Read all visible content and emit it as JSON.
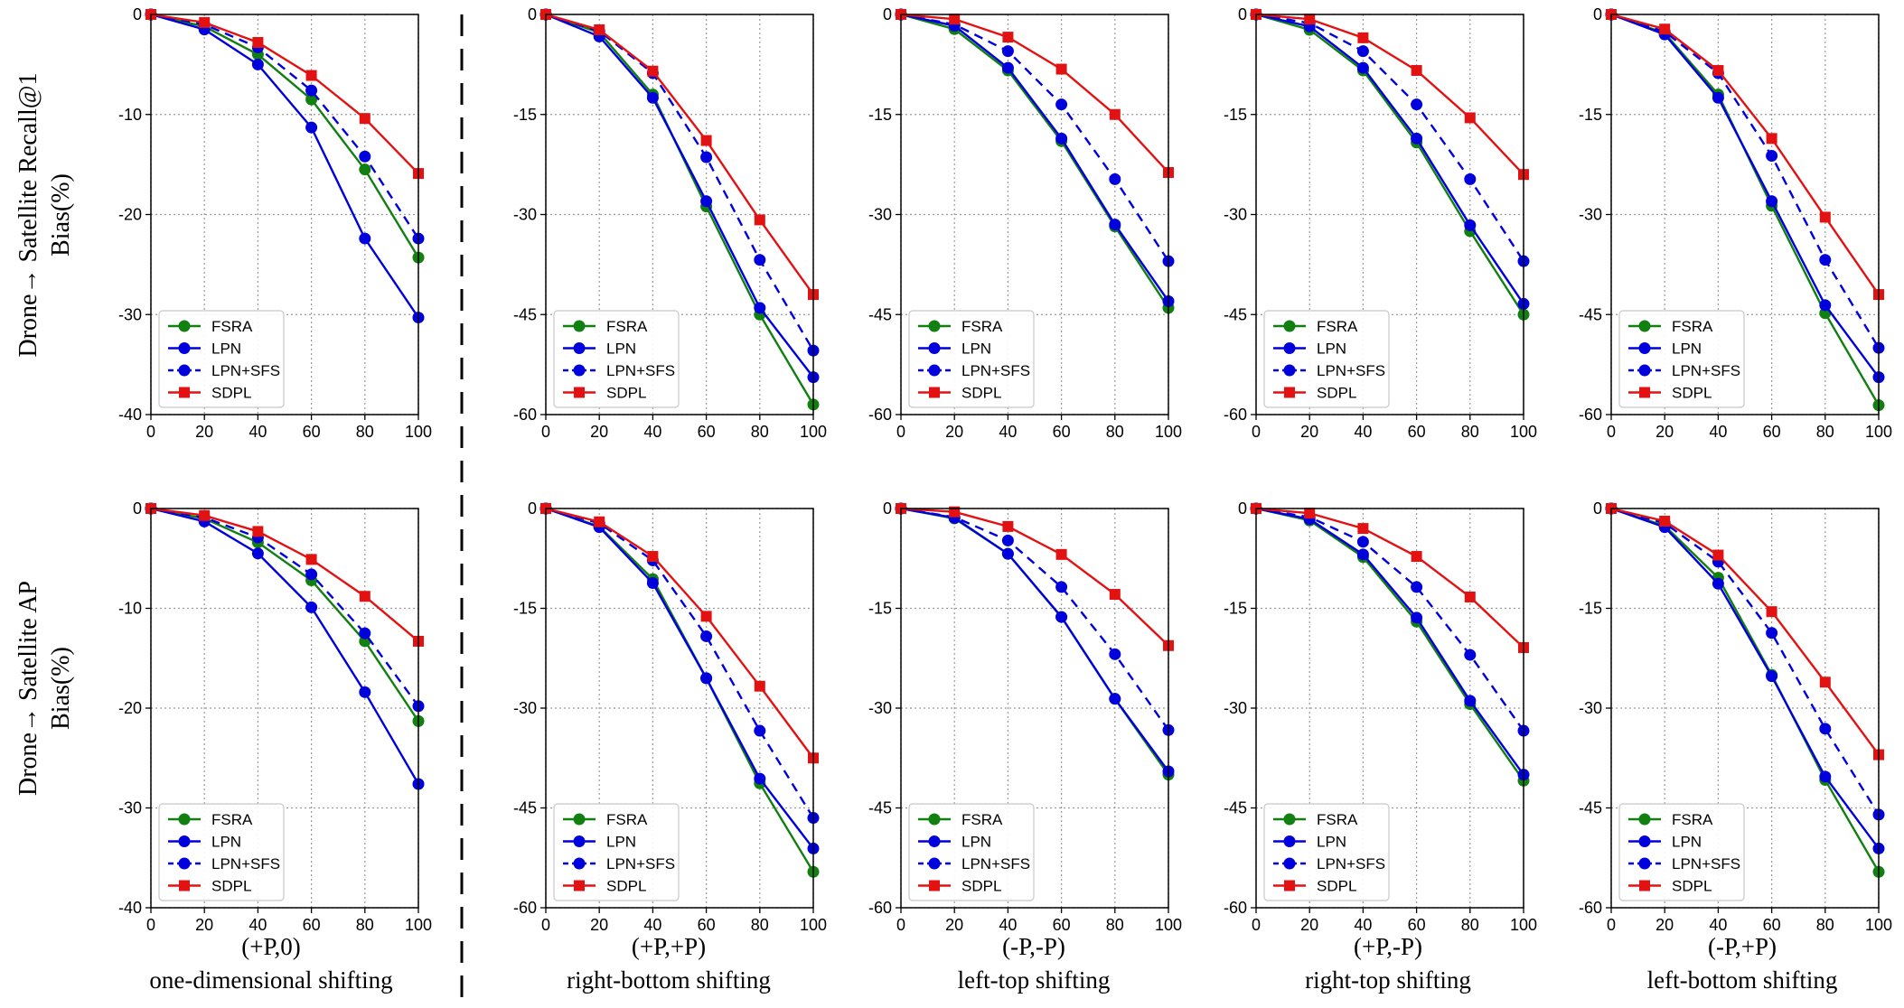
{
  "colors": {
    "FSRA": "#118011",
    "LPN": "#0000dd",
    "LPN+SFS": "#0000dd",
    "SDPL": "#e31212"
  },
  "legend": [
    "FSRA",
    "LPN",
    "LPN+SFS",
    "SDPL"
  ],
  "row_labels": [
    {
      "line1": "Drone→ Satellite Recall@1",
      "line2": "Bias(%)"
    },
    {
      "line1": "Drone→ Satellite AP",
      "line2": "Bias(%)"
    }
  ],
  "column_labels": [
    {
      "shift": "(+P,0)",
      "name": "one-dimensional shifting"
    },
    {
      "shift": "(+P,+P)",
      "name": "right-bottom shifting"
    },
    {
      "shift": "(-P,-P)",
      "name": "left-top shifting"
    },
    {
      "shift": "(+P,-P)",
      "name": "right-top shifting"
    },
    {
      "shift": "(-P,+P)",
      "name": "left-bottom shifting"
    }
  ],
  "chart_data": [
    {
      "type": "line",
      "row": 0,
      "col": 0,
      "x": [
        0,
        20,
        40,
        60,
        80,
        100
      ],
      "xlim": [
        0,
        100
      ],
      "ylim": [
        -40,
        0
      ],
      "xticks": [
        "0",
        "20",
        "40",
        "60",
        "80",
        "100"
      ],
      "yticks": [
        "0",
        "-10",
        "-20",
        "-30",
        "-40"
      ],
      "series": [
        {
          "name": "FSRA",
          "values": [
            0,
            -1.2,
            -4.0,
            -8.5,
            -15.5,
            -24.3
          ]
        },
        {
          "name": "LPN",
          "values": [
            0,
            -1.5,
            -5.0,
            -11.3,
            -22.4,
            -30.3
          ]
        },
        {
          "name": "LPN+SFS",
          "values": [
            0,
            -1.0,
            -3.3,
            -7.6,
            -14.2,
            -22.4
          ]
        },
        {
          "name": "SDPL",
          "values": [
            0,
            -0.8,
            -2.8,
            -6.1,
            -10.4,
            -15.9
          ]
        }
      ]
    },
    {
      "type": "line",
      "row": 0,
      "col": 1,
      "x": [
        0,
        20,
        40,
        60,
        80,
        100
      ],
      "xlim": [
        0,
        100
      ],
      "ylim": [
        -60,
        0
      ],
      "xticks": [
        "0",
        "20",
        "40",
        "60",
        "80",
        "100"
      ],
      "yticks": [
        "0",
        "-15",
        "-30",
        "-45",
        "-60"
      ],
      "series": [
        {
          "name": "FSRA",
          "values": [
            0,
            -2.7,
            -12.0,
            -28.8,
            -45.0,
            -58.5
          ]
        },
        {
          "name": "LPN",
          "values": [
            0,
            -3.3,
            -12.5,
            -28.0,
            -44.0,
            -54.4
          ]
        },
        {
          "name": "LPN+SFS",
          "values": [
            0,
            -2.5,
            -8.8,
            -21.4,
            -36.8,
            -50.4
          ]
        },
        {
          "name": "SDPL",
          "values": [
            0,
            -2.3,
            -8.5,
            -18.9,
            -30.8,
            -42.0
          ]
        }
      ]
    },
    {
      "type": "line",
      "row": 0,
      "col": 2,
      "x": [
        0,
        20,
        40,
        60,
        80,
        100
      ],
      "xlim": [
        0,
        100
      ],
      "ylim": [
        -60,
        0
      ],
      "xticks": [
        "0",
        "20",
        "40",
        "60",
        "80",
        "100"
      ],
      "yticks": [
        "0",
        "-15",
        "-30",
        "-45",
        "-60"
      ],
      "series": [
        {
          "name": "FSRA",
          "values": [
            0,
            -2.2,
            -8.4,
            -19.0,
            -31.8,
            -44.0
          ]
        },
        {
          "name": "LPN",
          "values": [
            0,
            -1.7,
            -8.0,
            -18.6,
            -31.5,
            -43.0
          ]
        },
        {
          "name": "LPN+SFS",
          "values": [
            0,
            -1.5,
            -5.5,
            -13.5,
            -24.7,
            -37.0
          ]
        },
        {
          "name": "SDPL",
          "values": [
            0,
            -0.7,
            -3.4,
            -8.2,
            -15.0,
            -23.7
          ]
        }
      ]
    },
    {
      "type": "line",
      "row": 0,
      "col": 3,
      "x": [
        0,
        20,
        40,
        60,
        80,
        100
      ],
      "xlim": [
        0,
        100
      ],
      "ylim": [
        -60,
        0
      ],
      "xticks": [
        "0",
        "20",
        "40",
        "60",
        "80",
        "100"
      ],
      "yticks": [
        "0",
        "-15",
        "-30",
        "-45",
        "-60"
      ],
      "series": [
        {
          "name": "FSRA",
          "values": [
            0,
            -2.3,
            -8.4,
            -19.2,
            -32.5,
            -45.0
          ]
        },
        {
          "name": "LPN",
          "values": [
            0,
            -1.8,
            -8.0,
            -18.6,
            -31.6,
            -43.4
          ]
        },
        {
          "name": "LPN+SFS",
          "values": [
            0,
            -1.3,
            -5.5,
            -13.5,
            -24.7,
            -37.0
          ]
        },
        {
          "name": "SDPL",
          "values": [
            0,
            -0.7,
            -3.5,
            -8.4,
            -15.5,
            -24.0
          ]
        }
      ]
    },
    {
      "type": "line",
      "row": 0,
      "col": 4,
      "x": [
        0,
        20,
        40,
        60,
        80,
        100
      ],
      "xlim": [
        0,
        100
      ],
      "ylim": [
        -60,
        0
      ],
      "xticks": [
        "0",
        "20",
        "40",
        "60",
        "80",
        "100"
      ],
      "yticks": [
        "0",
        "-15",
        "-30",
        "-45",
        "-60"
      ],
      "series": [
        {
          "name": "FSRA",
          "values": [
            0,
            -2.8,
            -12.0,
            -28.7,
            -44.8,
            -58.6
          ]
        },
        {
          "name": "LPN",
          "values": [
            0,
            -3.0,
            -12.5,
            -28.0,
            -43.6,
            -54.4
          ]
        },
        {
          "name": "LPN+SFS",
          "values": [
            0,
            -2.6,
            -8.8,
            -21.2,
            -36.8,
            -50.0
          ]
        },
        {
          "name": "SDPL",
          "values": [
            0,
            -2.2,
            -8.4,
            -18.6,
            -30.4,
            -42.0
          ]
        }
      ]
    },
    {
      "type": "line",
      "row": 1,
      "col": 0,
      "x": [
        0,
        20,
        40,
        60,
        80,
        100
      ],
      "xlim": [
        0,
        100
      ],
      "ylim": [
        -40,
        0
      ],
      "xticks": [
        "0",
        "20",
        "40",
        "60",
        "80",
        "100"
      ],
      "yticks": [
        "0",
        "-10",
        "-20",
        "-30",
        "-40"
      ],
      "series": [
        {
          "name": "FSRA",
          "values": [
            0,
            -1.0,
            -3.4,
            -7.2,
            -13.3,
            -21.3
          ]
        },
        {
          "name": "LPN",
          "values": [
            0,
            -1.3,
            -4.5,
            -9.9,
            -18.4,
            -27.6
          ]
        },
        {
          "name": "LPN+SFS",
          "values": [
            0,
            -0.9,
            -2.9,
            -6.6,
            -12.5,
            -19.8
          ]
        },
        {
          "name": "SDPL",
          "values": [
            0,
            -0.7,
            -2.3,
            -5.1,
            -8.8,
            -13.3
          ]
        }
      ]
    },
    {
      "type": "line",
      "row": 1,
      "col": 1,
      "x": [
        0,
        20,
        40,
        60,
        80,
        100
      ],
      "xlim": [
        0,
        100
      ],
      "ylim": [
        -60,
        0
      ],
      "xticks": [
        "0",
        "20",
        "40",
        "60",
        "80",
        "100"
      ],
      "yticks": [
        "0",
        "-15",
        "-30",
        "-45",
        "-60"
      ],
      "series": [
        {
          "name": "FSRA",
          "values": [
            0,
            -2.7,
            -10.6,
            -25.5,
            -41.3,
            -54.6
          ]
        },
        {
          "name": "LPN",
          "values": [
            0,
            -2.8,
            -11.2,
            -25.5,
            -40.6,
            -51.1
          ]
        },
        {
          "name": "LPN+SFS",
          "values": [
            0,
            -2.2,
            -7.8,
            -19.2,
            -33.4,
            -46.5
          ]
        },
        {
          "name": "SDPL",
          "values": [
            0,
            -2.0,
            -7.2,
            -16.2,
            -26.7,
            -37.5
          ]
        }
      ]
    },
    {
      "type": "line",
      "row": 1,
      "col": 2,
      "x": [
        0,
        20,
        40,
        60,
        80,
        100
      ],
      "xlim": [
        0,
        100
      ],
      "ylim": [
        -60,
        0
      ],
      "xticks": [
        "0",
        "20",
        "40",
        "60",
        "80",
        "100"
      ],
      "yticks": [
        "0",
        "-15",
        "-30",
        "-45",
        "-60"
      ],
      "series": [
        {
          "name": "FSRA",
          "values": [
            0,
            -1.5,
            -6.8,
            -16.3,
            -28.6,
            -40.0
          ]
        },
        {
          "name": "LPN",
          "values": [
            0,
            -1.4,
            -6.8,
            -16.3,
            -28.6,
            -39.5
          ]
        },
        {
          "name": "LPN+SFS",
          "values": [
            0,
            -1.3,
            -4.8,
            -11.8,
            -21.9,
            -33.3
          ]
        },
        {
          "name": "SDPL",
          "values": [
            0,
            -0.5,
            -2.7,
            -6.9,
            -12.9,
            -20.6
          ]
        }
      ]
    },
    {
      "type": "line",
      "row": 1,
      "col": 3,
      "x": [
        0,
        20,
        40,
        60,
        80,
        100
      ],
      "xlim": [
        0,
        100
      ],
      "ylim": [
        -60,
        0
      ],
      "xticks": [
        "0",
        "20",
        "40",
        "60",
        "80",
        "100"
      ],
      "yticks": [
        "0",
        "-15",
        "-30",
        "-45",
        "-60"
      ],
      "series": [
        {
          "name": "FSRA",
          "values": [
            0,
            -1.8,
            -7.3,
            -17.0,
            -29.4,
            -40.9
          ]
        },
        {
          "name": "LPN",
          "values": [
            0,
            -1.6,
            -6.9,
            -16.4,
            -28.9,
            -40.0
          ]
        },
        {
          "name": "LPN+SFS",
          "values": [
            0,
            -1.3,
            -5.0,
            -11.8,
            -22.0,
            -33.4
          ]
        },
        {
          "name": "SDPL",
          "values": [
            0,
            -0.7,
            -3.0,
            -7.2,
            -13.3,
            -20.9
          ]
        }
      ]
    },
    {
      "type": "line",
      "row": 1,
      "col": 4,
      "x": [
        0,
        20,
        40,
        60,
        80,
        100
      ],
      "xlim": [
        0,
        100
      ],
      "ylim": [
        -60,
        0
      ],
      "xticks": [
        "0",
        "20",
        "40",
        "60",
        "80",
        "100"
      ],
      "yticks": [
        "0",
        "-15",
        "-30",
        "-45",
        "-60"
      ],
      "series": [
        {
          "name": "FSRA",
          "values": [
            0,
            -2.6,
            -10.4,
            -25.0,
            -40.8,
            -54.6
          ]
        },
        {
          "name": "LPN",
          "values": [
            0,
            -2.8,
            -11.3,
            -25.2,
            -40.3,
            -51.1
          ]
        },
        {
          "name": "LPN+SFS",
          "values": [
            0,
            -2.2,
            -8.0,
            -18.7,
            -33.1,
            -46.0
          ]
        },
        {
          "name": "SDPL",
          "values": [
            0,
            -1.9,
            -7.0,
            -15.5,
            -26.1,
            -37.0
          ]
        }
      ]
    }
  ]
}
